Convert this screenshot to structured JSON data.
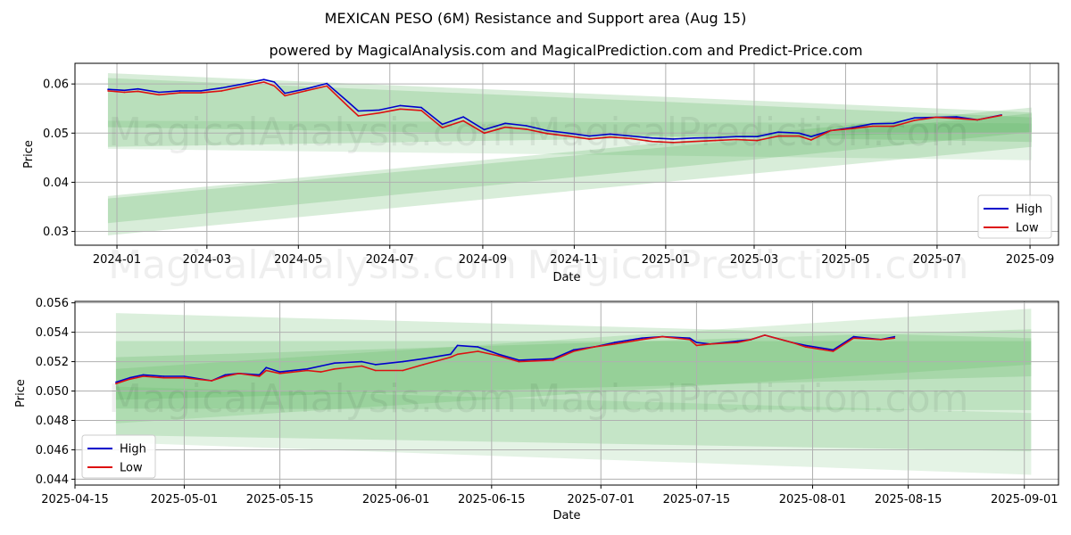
{
  "figure": {
    "title": "MEXICAN PESO (6M) Resistance and Support area (Aug 15)",
    "subtitle": "powered by MagicalAnalysis.com and MagicalPrediction.com and Predict-Price.com",
    "watermark_left": "MagicalAnalysis.com",
    "watermark_right": "MagicalPrediction.com",
    "colors": {
      "high": "#0000cc",
      "low": "#dd1111",
      "band": "#4caf50",
      "grid": "#b0b0b0"
    }
  },
  "chart_data": [
    {
      "type": "line",
      "xlabel": "Date",
      "ylabel": "Price",
      "xlim": [
        "2023-12-04",
        "2025-09-20"
      ],
      "ylim": [
        0.0272,
        0.0642
      ],
      "xticks": [
        "2024-01-01",
        "2024-03-01",
        "2024-05-01",
        "2024-07-01",
        "2024-09-01",
        "2024-11-01",
        "2025-01-01",
        "2025-03-01",
        "2025-05-01",
        "2025-07-01",
        "2025-09-01"
      ],
      "xtick_labels": [
        "2024-01",
        "2024-03",
        "2024-05",
        "2024-07",
        "2024-09",
        "2024-11",
        "2025-01",
        "2025-03",
        "2025-05",
        "2025-07",
        "2025-09"
      ],
      "yticks": [
        0.03,
        0.04,
        0.05,
        0.06
      ],
      "ytick_labels": [
        "0.03",
        "0.04",
        "0.05",
        "0.06"
      ],
      "grid": true,
      "legend": {
        "position": "bottom-right",
        "entries": [
          "High",
          "Low"
        ]
      },
      "bands": [
        {
          "x": [
            "2023-12-26",
            "2025-09-02"
          ],
          "top": [
            0.0622,
            0.0542
          ],
          "bottom": [
            0.0512,
            0.0482
          ],
          "opacity": 0.22
        },
        {
          "x": [
            "2023-12-26",
            "2025-09-02"
          ],
          "top": [
            0.0612,
            0.0532
          ],
          "bottom": [
            0.0472,
            0.0502
          ],
          "opacity": 0.22
        },
        {
          "x": [
            "2023-12-26",
            "2025-09-02"
          ],
          "top": [
            0.0372,
            0.0552
          ],
          "bottom": [
            0.0292,
            0.0472
          ],
          "opacity": 0.22
        },
        {
          "x": [
            "2023-12-26",
            "2025-09-02"
          ],
          "top": [
            0.0367,
            0.054
          ],
          "bottom": [
            0.0317,
            0.0502
          ],
          "opacity": 0.22
        },
        {
          "x": [
            "2023-12-26",
            "2025-09-02"
          ],
          "top": [
            0.0525,
            0.052
          ],
          "bottom": [
            0.0468,
            0.0445
          ],
          "opacity": 0.15
        }
      ],
      "series": [
        {
          "name": "High",
          "x": [
            "2023-12-26",
            "2024-01-06",
            "2024-01-15",
            "2024-01-29",
            "2024-02-12",
            "2024-02-26",
            "2024-03-11",
            "2024-03-25",
            "2024-04-08",
            "2024-04-15",
            "2024-04-22",
            "2024-05-06",
            "2024-05-20",
            "2024-06-03",
            "2024-06-10",
            "2024-06-24",
            "2024-07-08",
            "2024-07-22",
            "2024-08-05",
            "2024-08-19",
            "2024-09-02",
            "2024-09-16",
            "2024-09-30",
            "2024-10-14",
            "2024-10-28",
            "2024-11-11",
            "2024-11-25",
            "2024-12-09",
            "2024-12-23",
            "2025-01-06",
            "2025-01-20",
            "2025-02-03",
            "2025-02-17",
            "2025-03-03",
            "2025-03-17",
            "2025-03-31",
            "2025-04-08",
            "2025-04-21",
            "2025-05-05",
            "2025-05-19",
            "2025-06-02",
            "2025-06-16",
            "2025-06-30",
            "2025-07-14",
            "2025-07-28",
            "2025-08-13"
          ],
          "y": [
            0.0589,
            0.0587,
            0.059,
            0.0583,
            0.0586,
            0.0586,
            0.0592,
            0.06,
            0.0609,
            0.0604,
            0.0581,
            0.059,
            0.0601,
            0.0564,
            0.0545,
            0.0547,
            0.0556,
            0.0552,
            0.0518,
            0.0533,
            0.0507,
            0.052,
            0.0515,
            0.0505,
            0.05,
            0.0494,
            0.0498,
            0.0494,
            0.049,
            0.0488,
            0.049,
            0.0491,
            0.0493,
            0.0493,
            0.0502,
            0.05,
            0.0493,
            0.0505,
            0.0511,
            0.0519,
            0.052,
            0.0531,
            0.0532,
            0.0533,
            0.0527,
            0.0537
          ]
        },
        {
          "name": "Low",
          "x": [
            "2023-12-26",
            "2024-01-06",
            "2024-01-15",
            "2024-01-29",
            "2024-02-12",
            "2024-02-26",
            "2024-03-11",
            "2024-03-25",
            "2024-04-08",
            "2024-04-15",
            "2024-04-22",
            "2024-05-06",
            "2024-05-20",
            "2024-06-03",
            "2024-06-10",
            "2024-06-24",
            "2024-07-08",
            "2024-07-22",
            "2024-08-05",
            "2024-08-19",
            "2024-09-02",
            "2024-09-16",
            "2024-09-30",
            "2024-10-14",
            "2024-10-28",
            "2024-11-11",
            "2024-11-25",
            "2024-12-09",
            "2024-12-23",
            "2025-01-06",
            "2025-01-20",
            "2025-02-03",
            "2025-02-17",
            "2025-03-03",
            "2025-03-17",
            "2025-03-31",
            "2025-04-08",
            "2025-04-21",
            "2025-05-05",
            "2025-05-19",
            "2025-06-02",
            "2025-06-16",
            "2025-06-30",
            "2025-07-14",
            "2025-07-28",
            "2025-08-13"
          ],
          "y": [
            0.0586,
            0.0583,
            0.0585,
            0.0578,
            0.0582,
            0.0582,
            0.0586,
            0.0595,
            0.0604,
            0.0596,
            0.0576,
            0.0586,
            0.0596,
            0.0555,
            0.0535,
            0.0541,
            0.0549,
            0.0546,
            0.0511,
            0.0525,
            0.05,
            0.0512,
            0.0508,
            0.0499,
            0.0494,
            0.0488,
            0.0492,
            0.0489,
            0.0483,
            0.0481,
            0.0483,
            0.0485,
            0.0487,
            0.0485,
            0.0494,
            0.0494,
            0.0486,
            0.0505,
            0.0509,
            0.0514,
            0.0514,
            0.0526,
            0.0532,
            0.053,
            0.0527,
            0.0536
          ]
        }
      ]
    },
    {
      "type": "line",
      "xlabel": "Date",
      "ylabel": "Price",
      "xlim": [
        "2025-04-15",
        "2025-09-06"
      ],
      "ylim": [
        0.0436,
        0.0561
      ],
      "xticks": [
        "2025-04-15",
        "2025-05-01",
        "2025-05-15",
        "2025-06-01",
        "2025-06-15",
        "2025-07-01",
        "2025-07-15",
        "2025-08-01",
        "2025-08-15",
        "2025-09-01"
      ],
      "xtick_labels": [
        "2025-04-15",
        "2025-05-01",
        "2025-05-15",
        "2025-06-01",
        "2025-06-15",
        "2025-07-01",
        "2025-07-15",
        "2025-08-01",
        "2025-08-15",
        "2025-09-01"
      ],
      "yticks": [
        0.044,
        0.046,
        0.048,
        0.05,
        0.052,
        0.054,
        0.056
      ],
      "ytick_labels": [
        "0.044",
        "0.046",
        "0.048",
        "0.050",
        "0.052",
        "0.054",
        "0.056"
      ],
      "grid": true,
      "legend": {
        "position": "bottom-left",
        "entries": [
          "High",
          "Low"
        ]
      },
      "bands": [
        {
          "x": [
            "2025-04-21",
            "2025-09-02"
          ],
          "top": [
            0.0553,
            0.0536
          ],
          "bottom": [
            0.047,
            0.0459
          ],
          "opacity": 0.2
        },
        {
          "x": [
            "2025-04-21",
            "2025-09-02"
          ],
          "top": [
            0.0534,
            0.0534
          ],
          "bottom": [
            0.0488,
            0.0487
          ],
          "opacity": 0.2
        },
        {
          "x": [
            "2025-04-21",
            "2025-09-02"
          ],
          "top": [
            0.0523,
            0.0542
          ],
          "bottom": [
            0.0494,
            0.051
          ],
          "opacity": 0.2
        },
        {
          "x": [
            "2025-04-21",
            "2025-09-02"
          ],
          "top": [
            0.0515,
            0.0556
          ],
          "bottom": [
            0.0478,
            0.0518
          ],
          "opacity": 0.18
        },
        {
          "x": [
            "2025-04-21",
            "2025-09-02"
          ],
          "top": [
            0.0503,
            0.0485
          ],
          "bottom": [
            0.0465,
            0.0443
          ],
          "opacity": 0.15
        }
      ],
      "series": [
        {
          "name": "High",
          "x": [
            "2025-04-21",
            "2025-04-23",
            "2025-04-25",
            "2025-04-28",
            "2025-05-01",
            "2025-05-05",
            "2025-05-07",
            "2025-05-09",
            "2025-05-12",
            "2025-05-13",
            "2025-05-15",
            "2025-05-19",
            "2025-05-21",
            "2025-05-23",
            "2025-05-27",
            "2025-05-29",
            "2025-06-02",
            "2025-06-05",
            "2025-06-09",
            "2025-06-10",
            "2025-06-13",
            "2025-06-16",
            "2025-06-19",
            "2025-06-24",
            "2025-06-27",
            "2025-06-30",
            "2025-07-03",
            "2025-07-07",
            "2025-07-10",
            "2025-07-14",
            "2025-07-15",
            "2025-07-17",
            "2025-07-21",
            "2025-07-23",
            "2025-07-25",
            "2025-07-29",
            "2025-07-31",
            "2025-08-04",
            "2025-08-07",
            "2025-08-11",
            "2025-08-13"
          ],
          "y": [
            0.0506,
            0.0509,
            0.0511,
            0.051,
            0.051,
            0.0507,
            0.0511,
            0.0512,
            0.0511,
            0.0516,
            0.0513,
            0.0515,
            0.0517,
            0.0519,
            0.052,
            0.0518,
            0.052,
            0.0522,
            0.0525,
            0.0531,
            0.053,
            0.0525,
            0.0521,
            0.0522,
            0.0528,
            0.053,
            0.0533,
            0.0536,
            0.0537,
            0.0536,
            0.0533,
            0.0532,
            0.0534,
            0.0535,
            0.0538,
            0.0533,
            0.0531,
            0.0528,
            0.0537,
            0.0535,
            0.0537
          ]
        },
        {
          "name": "Low",
          "x": [
            "2025-04-21",
            "2025-04-23",
            "2025-04-25",
            "2025-04-28",
            "2025-05-01",
            "2025-05-05",
            "2025-05-07",
            "2025-05-09",
            "2025-05-12",
            "2025-05-13",
            "2025-05-15",
            "2025-05-19",
            "2025-05-21",
            "2025-05-23",
            "2025-05-27",
            "2025-05-29",
            "2025-06-02",
            "2025-06-05",
            "2025-06-09",
            "2025-06-10",
            "2025-06-13",
            "2025-06-16",
            "2025-06-19",
            "2025-06-24",
            "2025-06-27",
            "2025-06-30",
            "2025-07-03",
            "2025-07-07",
            "2025-07-10",
            "2025-07-14",
            "2025-07-15",
            "2025-07-17",
            "2025-07-21",
            "2025-07-23",
            "2025-07-25",
            "2025-07-29",
            "2025-07-31",
            "2025-08-04",
            "2025-08-07",
            "2025-08-11",
            "2025-08-13"
          ],
          "y": [
            0.0505,
            0.0508,
            0.051,
            0.0509,
            0.0509,
            0.0507,
            0.051,
            0.0512,
            0.051,
            0.0514,
            0.0512,
            0.0514,
            0.0513,
            0.0515,
            0.0517,
            0.0514,
            0.0514,
            0.0518,
            0.0523,
            0.0525,
            0.0527,
            0.0524,
            0.052,
            0.0521,
            0.0527,
            0.053,
            0.0532,
            0.0535,
            0.0537,
            0.0535,
            0.0531,
            0.0532,
            0.0533,
            0.0535,
            0.0538,
            0.0533,
            0.053,
            0.0527,
            0.0536,
            0.0535,
            0.0536
          ]
        }
      ]
    }
  ]
}
